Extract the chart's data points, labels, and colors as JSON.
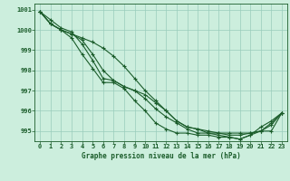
{
  "title": "Graphe pression niveau de la mer (hPa)",
  "bg_color": "#cceedd",
  "grid_color": "#99ccbb",
  "line_color": "#1a5c2a",
  "xlim": [
    -0.5,
    23.5
  ],
  "ylim": [
    994.5,
    1001.3
  ],
  "yticks": [
    995,
    996,
    997,
    998,
    999,
    1000,
    1001
  ],
  "xticks": [
    0,
    1,
    2,
    3,
    4,
    5,
    6,
    7,
    8,
    9,
    10,
    11,
    12,
    13,
    14,
    15,
    16,
    17,
    18,
    19,
    20,
    21,
    22,
    23
  ],
  "series": [
    [
      1000.9,
      1000.3,
      1000.0,
      999.8,
      999.6,
      999.4,
      999.1,
      998.7,
      998.2,
      997.6,
      997.0,
      996.5,
      996.0,
      995.5,
      995.2,
      995.1,
      995.0,
      994.9,
      994.9,
      994.9,
      994.9,
      995.0,
      995.4,
      995.9
    ],
    [
      1000.9,
      1000.3,
      1000.0,
      999.8,
      999.5,
      998.8,
      998.0,
      997.5,
      997.2,
      997.0,
      996.8,
      996.4,
      996.0,
      995.5,
      995.2,
      995.1,
      994.9,
      994.9,
      994.8,
      994.8,
      994.9,
      995.0,
      995.3,
      995.9
    ],
    [
      1000.9,
      1000.3,
      1000.0,
      999.6,
      998.8,
      998.1,
      997.4,
      997.4,
      997.1,
      996.5,
      996.0,
      995.4,
      995.1,
      994.9,
      994.9,
      994.8,
      994.8,
      994.7,
      994.7,
      994.6,
      994.8,
      995.0,
      995.0,
      995.9
    ],
    [
      1000.9,
      1000.5,
      1000.1,
      999.9,
      999.3,
      998.5,
      997.6,
      997.5,
      997.2,
      997.0,
      996.6,
      996.1,
      995.7,
      995.4,
      995.1,
      994.9,
      994.9,
      994.8,
      994.7,
      994.6,
      994.8,
      995.2,
      995.5,
      995.9
    ]
  ]
}
